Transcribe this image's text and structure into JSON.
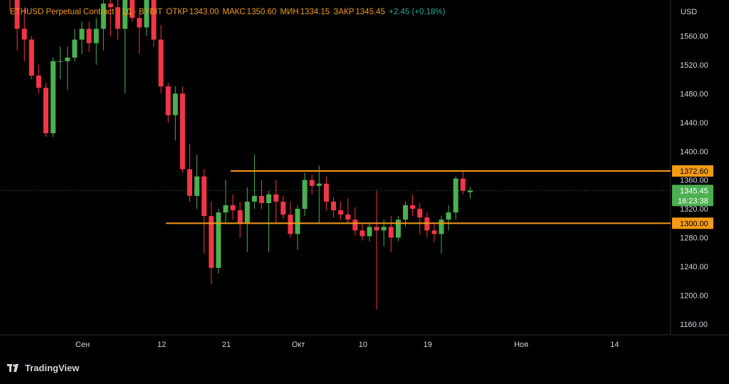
{
  "legend": {
    "title": "ETHUSD Perpetual Contract · 1Д · BYBIT",
    "open_label": "ОТКР",
    "open": "1343.00",
    "high_label": "МАКС",
    "high": "1350.60",
    "low_label": "МИН",
    "low": "1334.15",
    "close_label": "ЗАКР",
    "close": "1345.45",
    "change": "+2.45 (+0.18%)"
  },
  "axis": {
    "currency": "USD"
  },
  "footer": {
    "brand": "TradingView"
  },
  "colors": {
    "up": "#26a69a",
    "up_body": "#4caf50",
    "down": "#f23645",
    "level": "#f59b16",
    "background": "#000000",
    "axis_text": "#d1d4dc"
  },
  "chart_data": {
    "type": "candlestick",
    "y_ticks": [
      "1160.00",
      "1200.00",
      "1240.00",
      "1280.00",
      "1320.00",
      "1360.00",
      "1400.00",
      "1440.00",
      "1480.00",
      "1520.00",
      "1560.00"
    ],
    "ylim": [
      1145,
      1610
    ],
    "x_ticks": [
      {
        "label": "Сен",
        "index": 0
      },
      {
        "label": "12",
        "index": 11
      },
      {
        "label": "21",
        "index": 20
      },
      {
        "label": "Окт",
        "index": 30
      },
      {
        "label": "10",
        "index": 39
      },
      {
        "label": "19",
        "index": 48
      },
      {
        "label": "Ноя",
        "index": 61
      },
      {
        "label": "14",
        "index": 74
      }
    ],
    "candles": [
      [
        1640,
        1650,
        1595,
        1610
      ],
      [
        1610,
        1618,
        1540,
        1570
      ],
      [
        1570,
        1600,
        1525,
        1555
      ],
      [
        1555,
        1560,
        1500,
        1505
      ],
      [
        1505,
        1520,
        1480,
        1488
      ],
      [
        1488,
        1495,
        1420,
        1425
      ],
      [
        1425,
        1530,
        1420,
        1525
      ],
      [
        1525,
        1545,
        1500,
        1525
      ],
      [
        1525,
        1545,
        1485,
        1530
      ],
      [
        1530,
        1570,
        1525,
        1555
      ],
      [
        1555,
        1580,
        1535,
        1570
      ],
      [
        1570,
        1580,
        1538,
        1550
      ],
      [
        1550,
        1585,
        1520,
        1570
      ],
      [
        1570,
        1610,
        1540,
        1605
      ],
      [
        1605,
        1620,
        1560,
        1600
      ],
      [
        1600,
        1640,
        1555,
        1570
      ],
      [
        1570,
        1640,
        1480,
        1625
      ],
      [
        1625,
        1640,
        1580,
        1585
      ],
      [
        1585,
        1590,
        1535,
        1572
      ],
      [
        1572,
        1630,
        1560,
        1610
      ],
      [
        1610,
        1640,
        1545,
        1555
      ],
      [
        1555,
        1575,
        1480,
        1490
      ],
      [
        1490,
        1495,
        1440,
        1450
      ],
      [
        1450,
        1490,
        1415,
        1480
      ],
      [
        1480,
        1490,
        1370,
        1375
      ],
      [
        1375,
        1410,
        1330,
        1338
      ],
      [
        1338,
        1395,
        1320,
        1365
      ],
      [
        1365,
        1375,
        1258,
        1310
      ],
      [
        1310,
        1330,
        1215,
        1238
      ],
      [
        1238,
        1320,
        1230,
        1315
      ],
      [
        1315,
        1360,
        1300,
        1325
      ],
      [
        1325,
        1340,
        1305,
        1318
      ],
      [
        1318,
        1330,
        1280,
        1300
      ],
      [
        1300,
        1350,
        1260,
        1330
      ],
      [
        1330,
        1395,
        1320,
        1338
      ],
      [
        1338,
        1360,
        1320,
        1328
      ],
      [
        1328,
        1345,
        1260,
        1340
      ],
      [
        1340,
        1360,
        1300,
        1330
      ],
      [
        1330,
        1338,
        1306,
        1312
      ],
      [
        1312,
        1330,
        1280,
        1285
      ],
      [
        1285,
        1325,
        1263,
        1320
      ],
      [
        1320,
        1370,
        1310,
        1360
      ],
      [
        1360,
        1368,
        1340,
        1352
      ],
      [
        1352,
        1380,
        1300,
        1355
      ],
      [
        1355,
        1365,
        1318,
        1330
      ],
      [
        1330,
        1336,
        1308,
        1318
      ],
      [
        1318,
        1330,
        1305,
        1312
      ],
      [
        1312,
        1335,
        1300,
        1305
      ],
      [
        1305,
        1322,
        1283,
        1290
      ],
      [
        1290,
        1300,
        1276,
        1282
      ],
      [
        1282,
        1300,
        1275,
        1295
      ],
      [
        1295,
        1345,
        1180,
        1290
      ],
      [
        1290,
        1305,
        1268,
        1295
      ],
      [
        1295,
        1310,
        1260,
        1280
      ],
      [
        1280,
        1310,
        1275,
        1305
      ],
      [
        1305,
        1330,
        1295,
        1325
      ],
      [
        1325,
        1340,
        1310,
        1320
      ],
      [
        1320,
        1328,
        1285,
        1308
      ],
      [
        1308,
        1315,
        1280,
        1290
      ],
      [
        1290,
        1300,
        1274,
        1285
      ],
      [
        1285,
        1310,
        1258,
        1305
      ],
      [
        1305,
        1325,
        1290,
        1315
      ],
      [
        1315,
        1365,
        1305,
        1362
      ],
      [
        1362,
        1372,
        1340,
        1345
      ],
      [
        1343,
        1350.6,
        1334.15,
        1345.45
      ]
    ],
    "levels": [
      {
        "price": 1372.6,
        "label": "1372.60",
        "start_index": 31
      },
      {
        "price": 1300.0,
        "label": "1300.00",
        "start_index": 22
      }
    ],
    "last_price": {
      "price": 1345.45,
      "label": "1345.45",
      "countdown": "16:23:38"
    }
  }
}
